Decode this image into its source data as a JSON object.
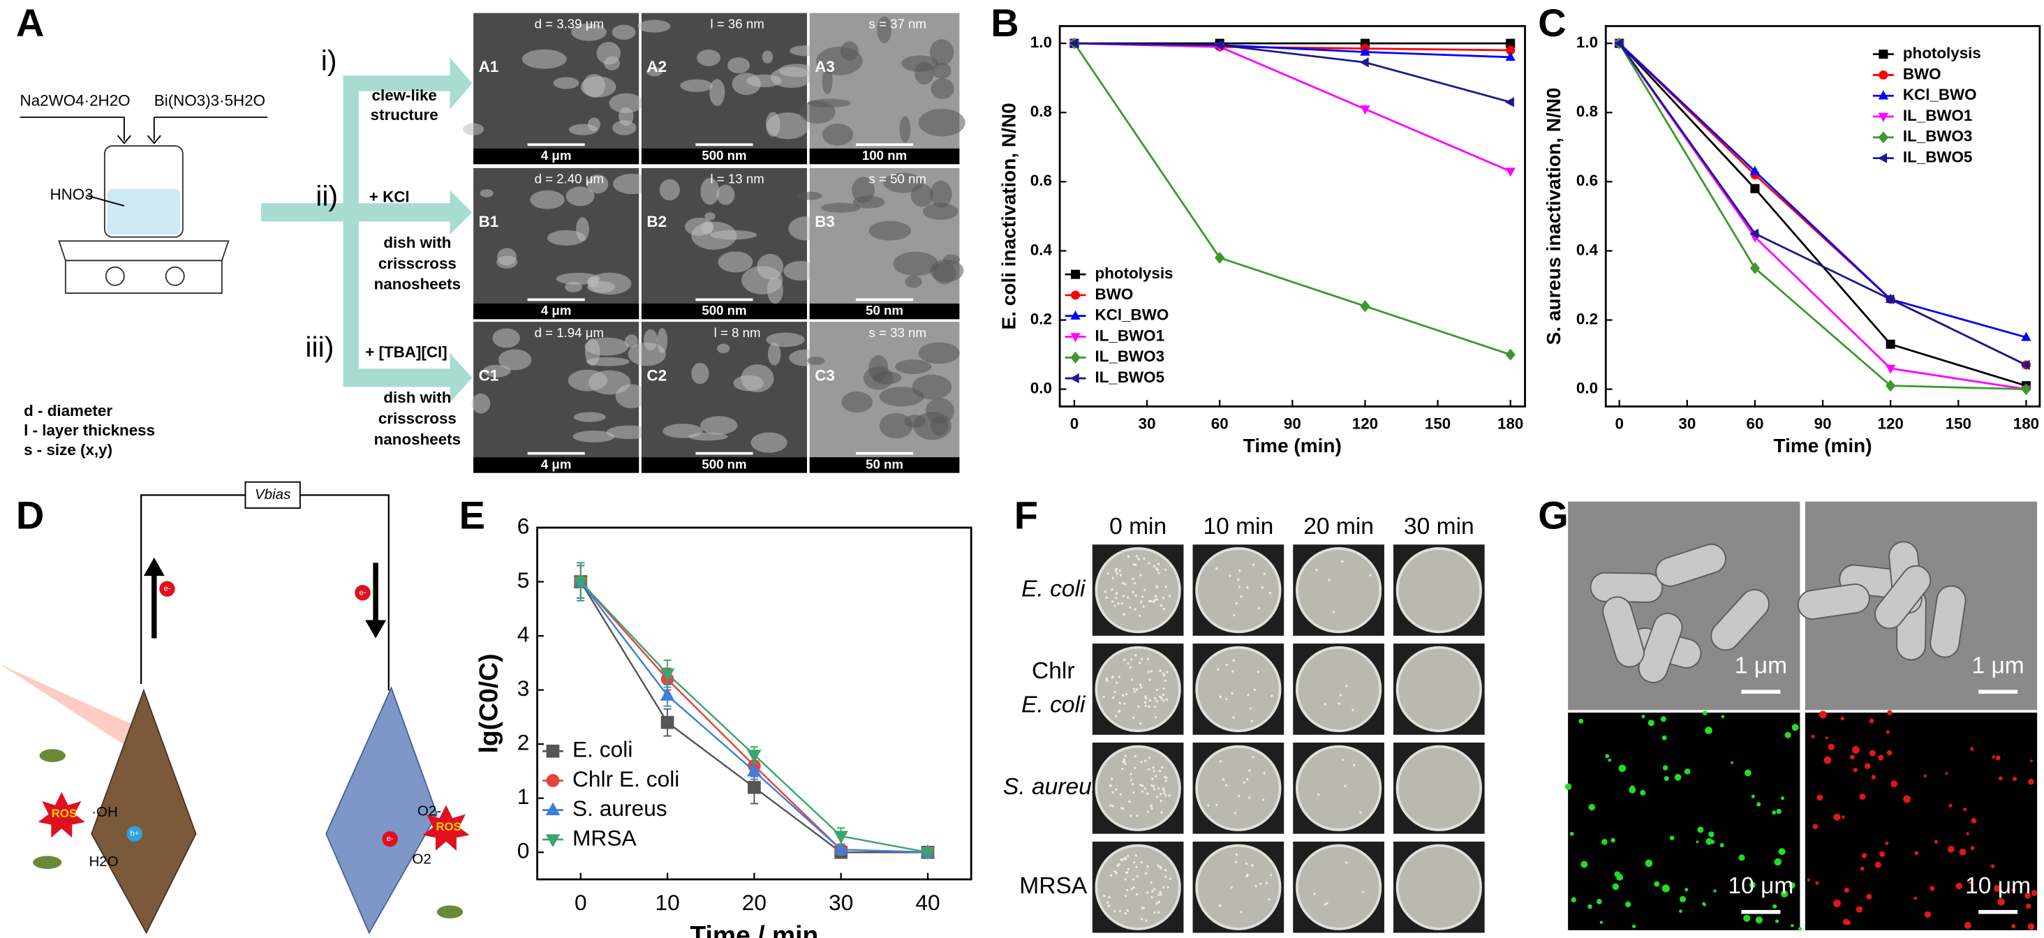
{
  "panel_labels": [
    "A",
    "B",
    "C",
    "D",
    "E",
    "F",
    "G"
  ],
  "synthesis": {
    "reagents": [
      "Na2WO4·2H2O",
      "Bi(NO3)3·5H2O"
    ],
    "acid": "HNO3",
    "key": [
      "d - diameter",
      "l - layer thickness",
      "s - size (x,y)"
    ],
    "routes": [
      {
        "label": "i)",
        "additive": null,
        "result": [
          "clew-like",
          "structure"
        ]
      },
      {
        "label": "ii)",
        "additive": "+ KCl",
        "result": [
          "dish with",
          "crisscross",
          "nanosheets"
        ]
      },
      {
        "label": "iii)",
        "additive": "+ [TBA][Cl]",
        "result": [
          "dish with",
          "crisscross",
          "nanosheets"
        ]
      }
    ],
    "micrographs": [
      {
        "id": "A1",
        "measure": "d = 3.39 μm",
        "scale": "4 μm"
      },
      {
        "id": "A2",
        "measure": "l = 36 nm",
        "scale": "500 nm"
      },
      {
        "id": "A3",
        "measure": "s = 37 nm",
        "scale": "100 nm"
      },
      {
        "id": "B1",
        "measure": "d = 2.40 μm",
        "scale": "4 μm"
      },
      {
        "id": "B2",
        "measure": "l = 13 nm",
        "scale": "500 nm"
      },
      {
        "id": "B3",
        "measure": "s = 50 nm",
        "scale": "50 nm"
      },
      {
        "id": "C1",
        "measure": "d = 1.94 μm",
        "scale": "4 μm"
      },
      {
        "id": "C2",
        "measure": "l = 8 nm",
        "scale": "500 nm"
      },
      {
        "id": "C3",
        "measure": "s = 33 nm",
        "scale": "50 nm"
      }
    ]
  },
  "chart_data": [
    {
      "type": "line",
      "xlabel": "Time (min)",
      "ylabel": "E. coli inactivation, N/N0",
      "x": [
        0,
        60,
        120,
        180
      ],
      "xlim": [
        -6,
        186
      ],
      "xticks": [
        0,
        30,
        60,
        90,
        120,
        150,
        180
      ],
      "ylim": [
        -0.05,
        1.05
      ],
      "yticks": [
        {
          "value": 0,
          "label": "0.0"
        },
        0.2,
        0.4,
        0.6,
        0.8,
        {
          "value": 1,
          "label": "1.0"
        }
      ],
      "legend": "lower left",
      "series": [
        {
          "name": "photolysis",
          "color": "#000000",
          "marker": "square",
          "values": [
            1,
            1,
            1,
            1
          ]
        },
        {
          "name": "BWO",
          "color": "#ff0000",
          "marker": "circle",
          "values": [
            1,
            0.99,
            0.985,
            0.98
          ]
        },
        {
          "name": "KCl_BWO",
          "color": "#0000ff",
          "marker": "triangle-up",
          "values": [
            1,
            0.995,
            0.975,
            0.96
          ]
        },
        {
          "name": "IL_BWO1",
          "color": "#ff00ff",
          "marker": "triangle-down",
          "values": [
            1,
            0.99,
            0.81,
            0.63
          ]
        },
        {
          "name": "IL_BWO3",
          "color": "#3a9a2a",
          "marker": "diamond",
          "values": [
            1,
            0.38,
            0.24,
            0.1
          ]
        },
        {
          "name": "IL_BWO5",
          "color": "#1a1a8c",
          "marker": "triangle-left",
          "values": [
            1,
            0.995,
            0.945,
            0.83
          ]
        }
      ]
    },
    {
      "type": "line",
      "xlabel": "Time (min)",
      "ylabel": "S. aureus inactivation, N/N0",
      "x": [
        0,
        60,
        120,
        180
      ],
      "xlim": [
        -6,
        186
      ],
      "xticks": [
        0,
        30,
        60,
        90,
        120,
        150,
        180
      ],
      "ylim": [
        -0.05,
        1.05
      ],
      "yticks": [
        {
          "value": 0,
          "label": "0.0"
        },
        0.2,
        0.4,
        0.6,
        0.8,
        {
          "value": 1,
          "label": "1.0"
        }
      ],
      "legend": "upper right",
      "series": [
        {
          "name": "photolysis",
          "color": "#000000",
          "marker": "square",
          "values": [
            1,
            0.58,
            0.13,
            0.01
          ]
        },
        {
          "name": "BWO",
          "color": "#ff0000",
          "marker": "circle",
          "values": [
            1,
            0.62,
            0.26,
            0.07
          ]
        },
        {
          "name": "KCl_BWO",
          "color": "#0000ff",
          "marker": "triangle-up",
          "values": [
            1,
            0.63,
            0.26,
            0.15
          ]
        },
        {
          "name": "IL_BWO1",
          "color": "#ff00ff",
          "marker": "triangle-down",
          "values": [
            1,
            0.44,
            0.06,
            0
          ]
        },
        {
          "name": "IL_BWO3",
          "color": "#3a9a2a",
          "marker": "diamond",
          "values": [
            1,
            0.35,
            0.01,
            0
          ]
        },
        {
          "name": "IL_BWO5",
          "color": "#1a1a8c",
          "marker": "triangle-left",
          "values": [
            1,
            0.45,
            0.26,
            0.07
          ]
        }
      ]
    },
    {
      "type": "line",
      "xlabel": "Time / min",
      "ylabel": "lg(C0/C)",
      "x": [
        0,
        10,
        20,
        30,
        40
      ],
      "xlim": [
        -5,
        45
      ],
      "xticks": [
        0,
        10,
        20,
        30,
        40
      ],
      "ylim": [
        -0.5,
        6
      ],
      "yticks": [
        0,
        1,
        2,
        3,
        4,
        5,
        6
      ],
      "legend": "lower left",
      "series": [
        {
          "name": "E. coli",
          "color": "#555555",
          "marker": "square",
          "values": [
            5,
            2.4,
            1.2,
            0,
            0
          ],
          "errors": [
            0.3,
            0.25,
            0.3,
            0.05,
            0.05
          ]
        },
        {
          "name": "Chlr E. coli",
          "color": "#e8423c",
          "marker": "circle",
          "values": [
            5,
            3.2,
            1.6,
            0.05,
            0
          ],
          "errors": [
            0.3,
            0.2,
            0.2,
            0.1,
            0.05
          ]
        },
        {
          "name": "S. aureus",
          "color": "#3b7fd9",
          "marker": "triangle-up",
          "values": [
            5,
            2.9,
            1.5,
            0.05,
            0
          ],
          "errors": [
            0.35,
            0.2,
            0.15,
            0.05,
            0.05
          ]
        },
        {
          "name": "MRSA",
          "color": "#3aa56e",
          "marker": "triangle-down",
          "values": [
            5,
            3.3,
            1.8,
            0.3,
            0
          ],
          "errors": [
            0.3,
            0.25,
            0.15,
            0.15,
            0.05
          ]
        }
      ]
    }
  ],
  "schematic": {
    "bias": "Vbias",
    "electron": "e-",
    "hole": "h+",
    "ros": "ROS",
    "hydroxyl": "·OH",
    "water": "H2O",
    "oxygen": "O2",
    "superoxide": "O2-"
  },
  "plates": {
    "columns": [
      "0 min",
      "10 min",
      "20 min",
      "30 min"
    ],
    "rows": [
      [
        "E. coli"
      ],
      [
        "Chlr",
        "E. coli"
      ],
      [
        "S. aureus"
      ],
      [
        "MRSA"
      ]
    ]
  },
  "imaging": {
    "scale_bars": [
      "1 μm",
      "1 μm",
      "10 μm",
      "10 μm"
    ]
  }
}
